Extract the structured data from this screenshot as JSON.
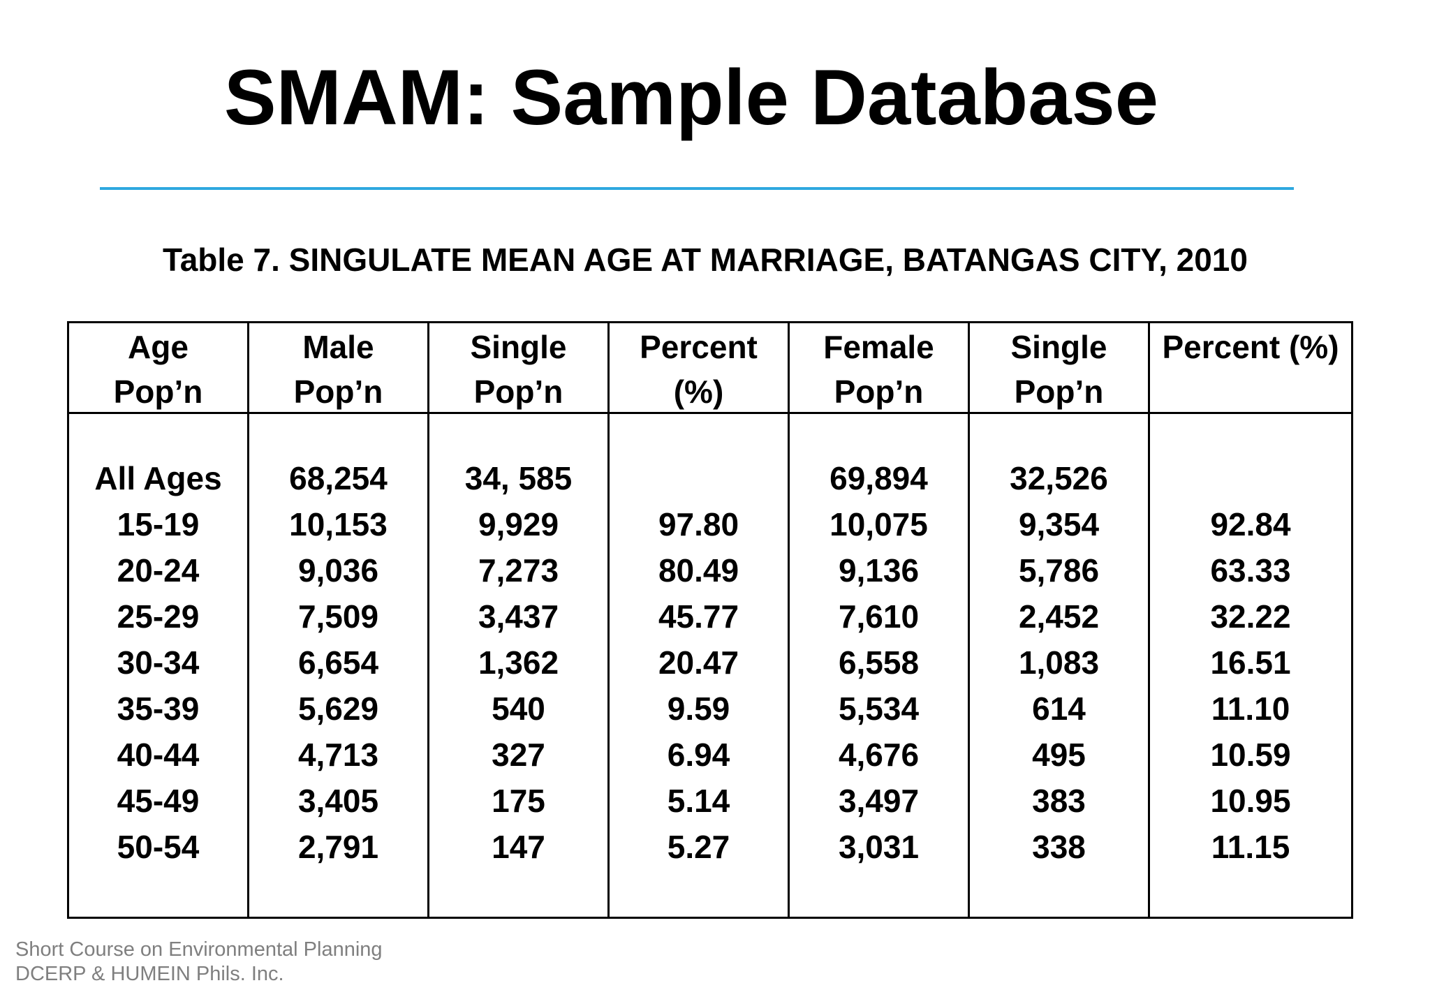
{
  "slide": {
    "title": "SMAM: Sample Database"
  },
  "table": {
    "caption": "Table 7.  SINGULATE MEAN AGE AT MARRIAGE, BATANGAS CITY, 2010",
    "columns": [
      {
        "header": [
          "Age",
          "Pop’n"
        ],
        "cells": [
          "All Ages",
          "15-19",
          "20-24",
          "25-29",
          "30-34",
          "35-39",
          "40-44",
          "45-49",
          "50-54"
        ]
      },
      {
        "header": [
          "Male",
          "Pop’n"
        ],
        "cells": [
          "68,254",
          "10,153",
          "9,036",
          "7,509",
          "6,654",
          "5,629",
          "4,713",
          "3,405",
          "2,791"
        ]
      },
      {
        "header": [
          "Single",
          "Pop’n"
        ],
        "cells": [
          "34, 585",
          "9,929",
          "7,273",
          "3,437",
          "1,362",
          "540",
          "327",
          "175",
          "147"
        ]
      },
      {
        "header": [
          "Percent",
          "(%)"
        ],
        "cells": [
          "",
          "97.80",
          "80.49",
          "45.77",
          "20.47",
          "9.59",
          "6.94",
          "5.14",
          "5.27"
        ]
      },
      {
        "header": [
          "Female",
          "Pop’n"
        ],
        "cells": [
          "69,894",
          "10,075",
          "9,136",
          "7,610",
          "6,558",
          "5,534",
          "4,676",
          "3,497",
          "3,031"
        ]
      },
      {
        "header": [
          "Single",
          "Pop’n"
        ],
        "cells": [
          "32,526",
          "9,354",
          "5,786",
          "2,452",
          "1,083",
          "614",
          "495",
          "383",
          "338"
        ]
      },
      {
        "header": [
          "Percent (%)",
          ""
        ],
        "cells": [
          "",
          "92.84",
          "63.33",
          "32.22",
          "16.51",
          "11.10",
          "10.59",
          "10.95",
          "11.15"
        ]
      }
    ]
  },
  "footer": {
    "line1": "Short Course on Environmental Planning",
    "line2": "DCERP & HUMEIN Phils. Inc."
  },
  "colors": {
    "rule": "#2ea8df",
    "footer_text": "#7f7f7f"
  }
}
